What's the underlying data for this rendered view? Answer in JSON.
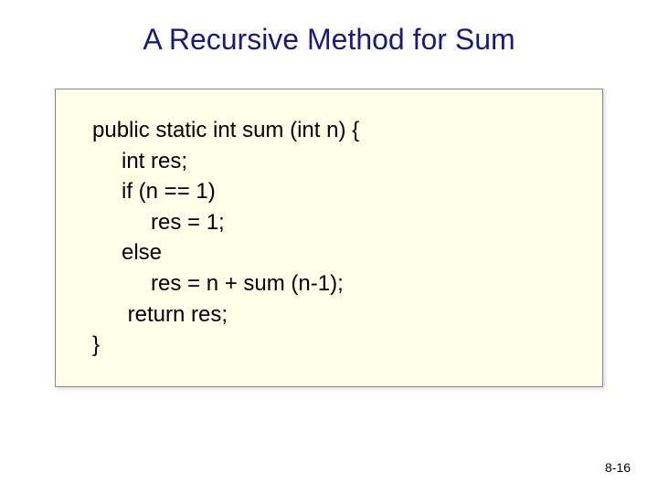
{
  "slide": {
    "title": "A Recursive Method for Sum",
    "title_color": "#1a1a7a",
    "title_fontsize": 32,
    "background_color": "#ffffff",
    "page_number": "8-16",
    "page_number_fontsize": 14,
    "code_box": {
      "background_color": "#fffee8",
      "border_color": "#888888",
      "font_color": "#000000",
      "fontsize": 24,
      "lines": [
        {
          "text": "public static int sum (int n) {",
          "indent": 0
        },
        {
          "text": "int res;",
          "indent": 1
        },
        {
          "text": "if (n == 1)",
          "indent": 1
        },
        {
          "text": "res = 1;",
          "indent": 2
        },
        {
          "text": "else",
          "indent": 1
        },
        {
          "text": "res = n + sum (n-1);",
          "indent": 2
        },
        {
          "text": " return res;",
          "indent": 1
        },
        {
          "text": "}",
          "indent": 0
        }
      ]
    }
  }
}
